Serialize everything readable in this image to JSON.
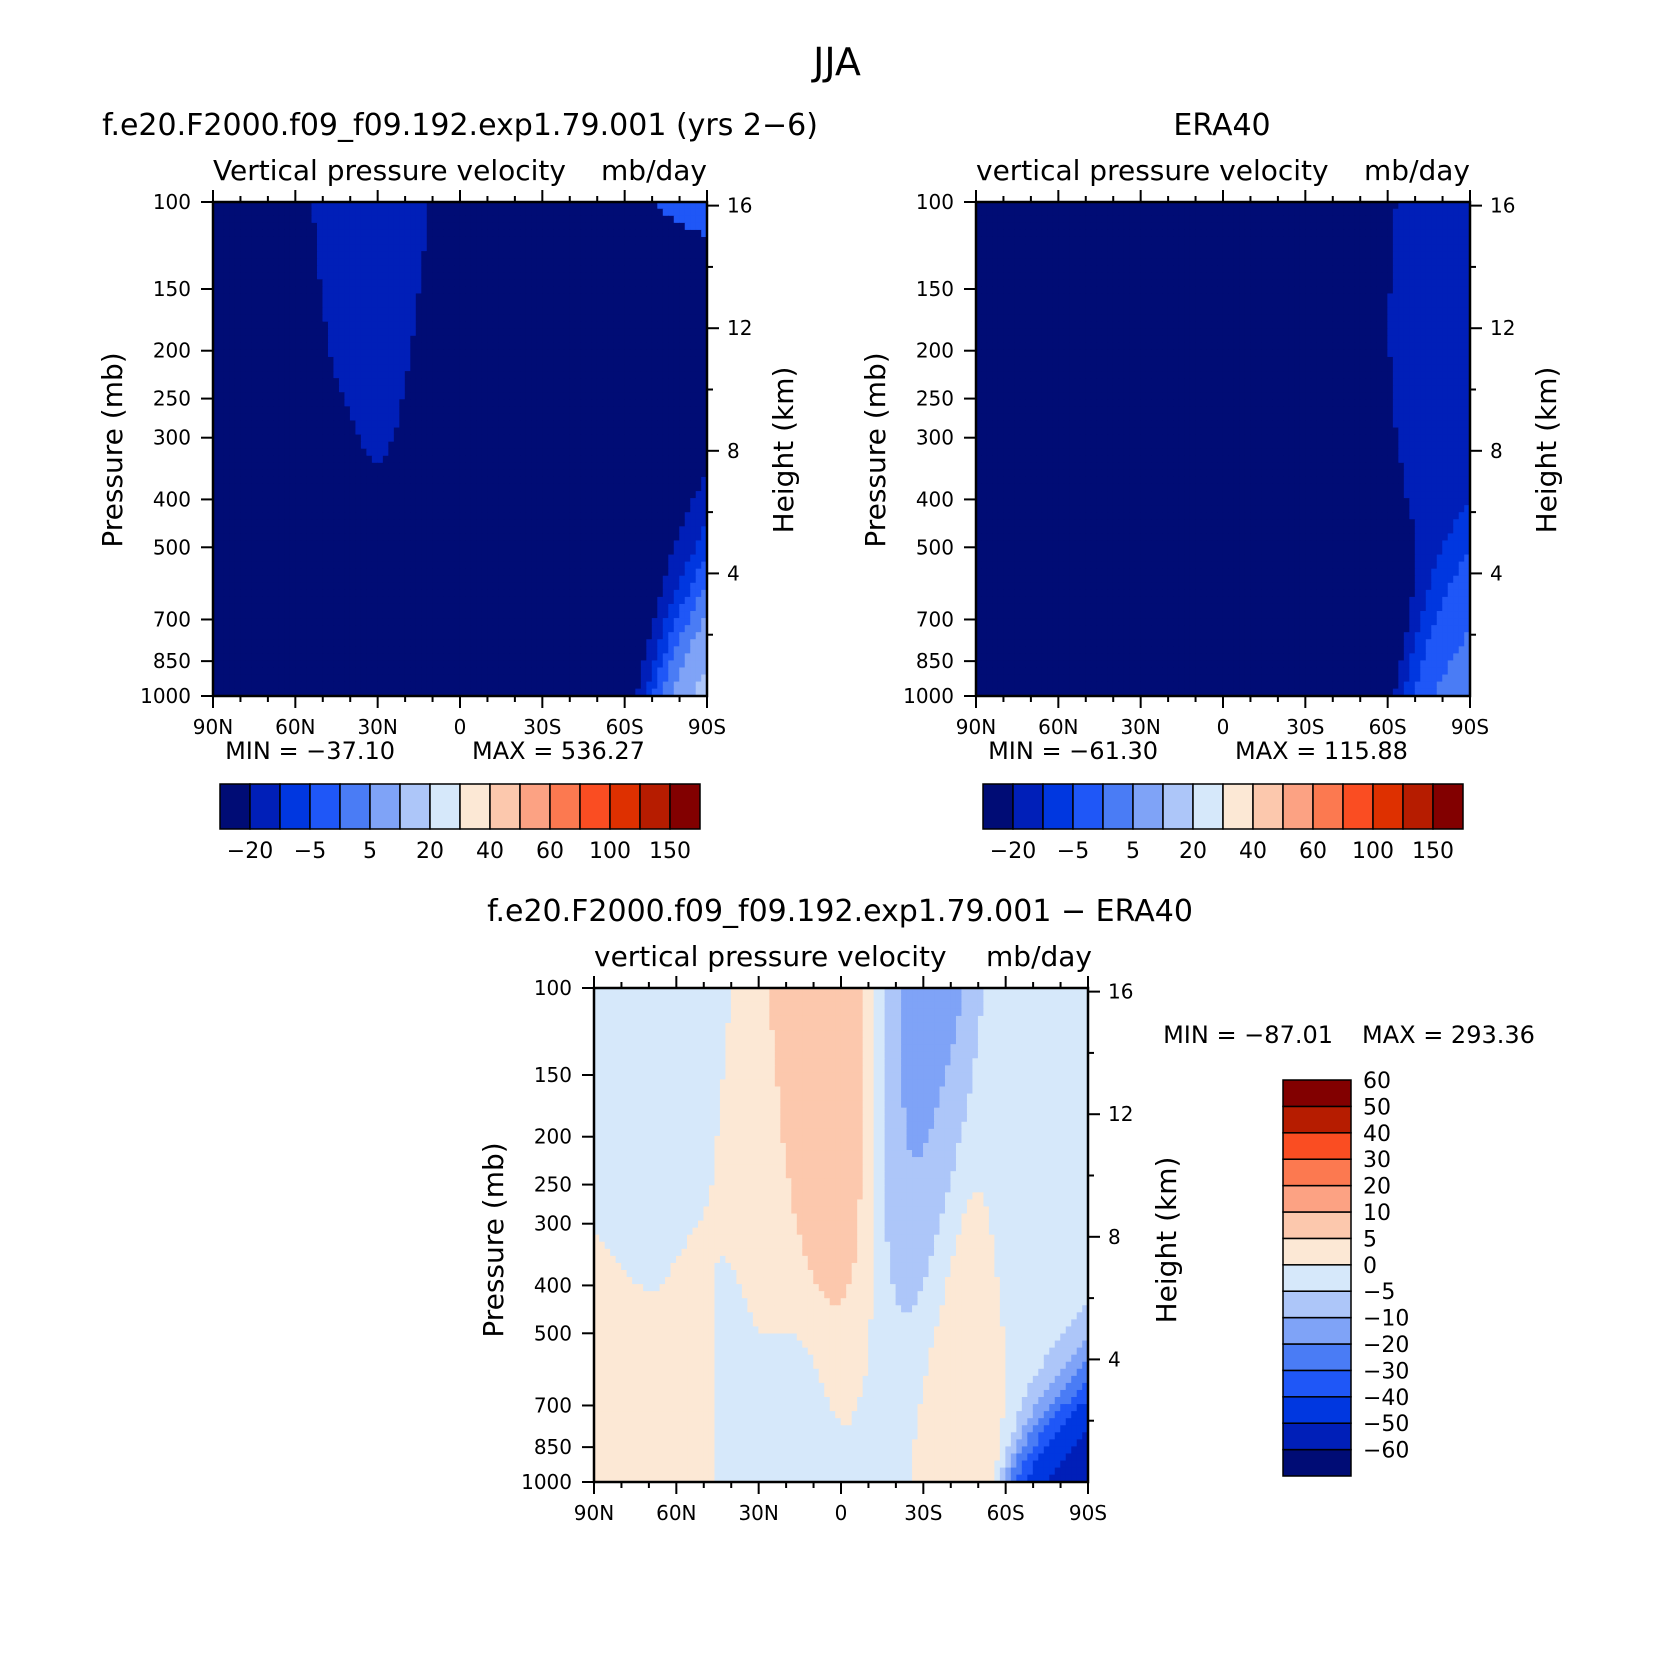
{
  "figure": {
    "title": "JJA"
  },
  "colors": {
    "main": [
      "#000c75",
      "#001fb8",
      "#0037e0",
      "#1f57f7",
      "#4a7cf5",
      "#7fa3f7",
      "#adc6f9",
      "#d6e8fa",
      "#fce8d5",
      "#fcc8ad",
      "#fca283",
      "#fc7950",
      "#fa4d22",
      "#de3000",
      "#b61c00",
      "#820000"
    ],
    "diff": [
      "#000c75",
      "#001fb8",
      "#0037e0",
      "#1f57f7",
      "#4a7cf5",
      "#7fa3f7",
      "#adc6f9",
      "#d6e8fa",
      "#fce8d5",
      "#fcc8ad",
      "#fca283",
      "#fc7950",
      "#fa4d22",
      "#b61c00",
      "#820000"
    ]
  },
  "chart_data": [
    {
      "type": "heatmap",
      "title": "f.e20.F2000.f09_f09.192.exp1.79.001 (yrs 2−6)",
      "subtitle_left": "Vertical pressure velocity",
      "subtitle_right": "mb/day",
      "xlabel": "",
      "ylabel": "Pressure (mb)",
      "y2label": "Height (km)",
      "x_ticks": [
        "90N",
        "60N",
        "30N",
        "0",
        "30S",
        "60S",
        "90S"
      ],
      "y_ticks": [
        100,
        150,
        200,
        250,
        300,
        400,
        500,
        700,
        850,
        1000
      ],
      "y_scale": "log",
      "ylim": [
        1000,
        100
      ],
      "y2_ticks": [
        4,
        8,
        12,
        16
      ],
      "min_label": "MIN = −37.10",
      "max_label": "MAX = 536.27",
      "colorbar": {
        "orientation": "horizontal",
        "labels": [
          "−20",
          "−5",
          "5",
          "20",
          "40",
          "60",
          "100",
          "150"
        ]
      },
      "base_level": 3,
      "field": [
        {
          "x": -2,
          "p": 500,
          "level": -1
        },
        {
          "x": 3,
          "p": 650,
          "level": -1
        },
        {
          "x": 8,
          "p": 550,
          "level": 0
        },
        {
          "x": 20,
          "p": 400,
          "level": -3
        },
        {
          "x": 44,
          "p": 500,
          "level": -3
        },
        {
          "x": 55,
          "p": 600,
          "level": 0
        },
        {
          "x": 62,
          "p": 320,
          "level": 1
        },
        {
          "x": 75,
          "p": 500,
          "level": -2
        },
        {
          "x": 84,
          "p": 380,
          "level": -2
        },
        {
          "x": 99,
          "p": 540,
          "level": -2
        },
        {
          "x": 111,
          "p": 520,
          "level": -1
        },
        {
          "x": 118,
          "p": 320,
          "level": 0
        },
        {
          "x": 126,
          "p": 400,
          "level": -2
        },
        {
          "x": 136,
          "p": 450,
          "level": -3
        },
        {
          "x": 153,
          "p": 620,
          "level": -1
        },
        {
          "x": 165,
          "p": 580,
          "level": 0
        },
        {
          "x": 175,
          "p": 820,
          "level": 6
        }
      ]
    },
    {
      "type": "heatmap",
      "title": "ERA40",
      "subtitle_left": "vertical pressure velocity",
      "subtitle_right": "mb/day",
      "xlabel": "",
      "ylabel": "Pressure (mb)",
      "y2label": "Height (km)",
      "x_ticks": [
        "90N",
        "60N",
        "30N",
        "0",
        "30S",
        "60S",
        "90S"
      ],
      "y_ticks": [
        100,
        150,
        200,
        250,
        300,
        400,
        500,
        700,
        850,
        1000
      ],
      "y_scale": "log",
      "ylim": [
        1000,
        100
      ],
      "y2_ticks": [
        4,
        8,
        12,
        16
      ],
      "min_label": "MIN = −61.30",
      "max_label": "MAX = 115.88",
      "colorbar": {
        "orientation": "horizontal",
        "labels": [
          "−20",
          "−5",
          "5",
          "20",
          "40",
          "60",
          "100",
          "150"
        ]
      },
      "base_level": 3,
      "field": [
        {
          "x": 5,
          "p": 600,
          "level": -1
        },
        {
          "x": 20,
          "p": 400,
          "level": -2
        },
        {
          "x": 44,
          "p": 500,
          "level": -2
        },
        {
          "x": 62,
          "p": 500,
          "level": -1
        },
        {
          "x": 75,
          "p": 420,
          "level": -1
        },
        {
          "x": 90,
          "p": 500,
          "level": 0
        },
        {
          "x": 100,
          "p": 250,
          "level": -2
        },
        {
          "x": 120,
          "p": 350,
          "level": -1
        },
        {
          "x": 136,
          "p": 500,
          "level": -3
        },
        {
          "x": 150,
          "p": 600,
          "level": -1
        },
        {
          "x": 160,
          "p": 450,
          "level": 1
        },
        {
          "x": 172,
          "p": 750,
          "level": 2
        },
        {
          "x": 176,
          "p": 880,
          "level": 5
        }
      ]
    },
    {
      "type": "heatmap",
      "title": "f.e20.F2000.f09_f09.192.exp1.79.001 − ERA40",
      "subtitle_left": "vertical pressure velocity",
      "subtitle_right": "mb/day",
      "xlabel": "",
      "ylabel": "Pressure (mb)",
      "y2label": "Height (km)",
      "x_ticks": [
        "90N",
        "60N",
        "30N",
        "0",
        "30S",
        "60S",
        "90S"
      ],
      "y_ticks": [
        100,
        150,
        200,
        250,
        300,
        400,
        500,
        700,
        850,
        1000
      ],
      "y_scale": "log",
      "ylim": [
        1000,
        100
      ],
      "y2_ticks": [
        4,
        8,
        12,
        16
      ],
      "min_label": "MIN = −87.01",
      "max_label": "MAX = 293.36",
      "colorbar": {
        "orientation": "vertical",
        "labels": [
          "−60",
          "−50",
          "−40",
          "−30",
          "−20",
          "−10",
          "−5",
          "0",
          "5",
          "10",
          "20",
          "30",
          "40",
          "50",
          "60"
        ]
      },
      "base_level": 7,
      "field": [
        {
          "x": 8,
          "p": 500,
          "level": 8
        },
        {
          "x": 18,
          "p": 300,
          "level": 7
        },
        {
          "x": 36,
          "p": 500,
          "level": 8
        },
        {
          "x": 50,
          "p": 500,
          "level": 7
        },
        {
          "x": 63,
          "p": 400,
          "level": 8
        },
        {
          "x": 76,
          "p": 500,
          "level": 7
        },
        {
          "x": 86,
          "p": 350,
          "level": 9
        },
        {
          "x": 92,
          "p": 350,
          "level": 10
        },
        {
          "x": 98,
          "p": 450,
          "level": 8
        },
        {
          "x": 104,
          "p": 500,
          "level": 7
        },
        {
          "x": 110,
          "p": 350,
          "level": 5
        },
        {
          "x": 118,
          "p": 400,
          "level": 6
        },
        {
          "x": 128,
          "p": 500,
          "level": 8
        },
        {
          "x": 136,
          "p": 500,
          "level": 9
        },
        {
          "x": 148,
          "p": 450,
          "level": 7
        },
        {
          "x": 166,
          "p": 520,
          "level": 7
        },
        {
          "x": 176,
          "p": 880,
          "level": 1
        }
      ]
    }
  ]
}
